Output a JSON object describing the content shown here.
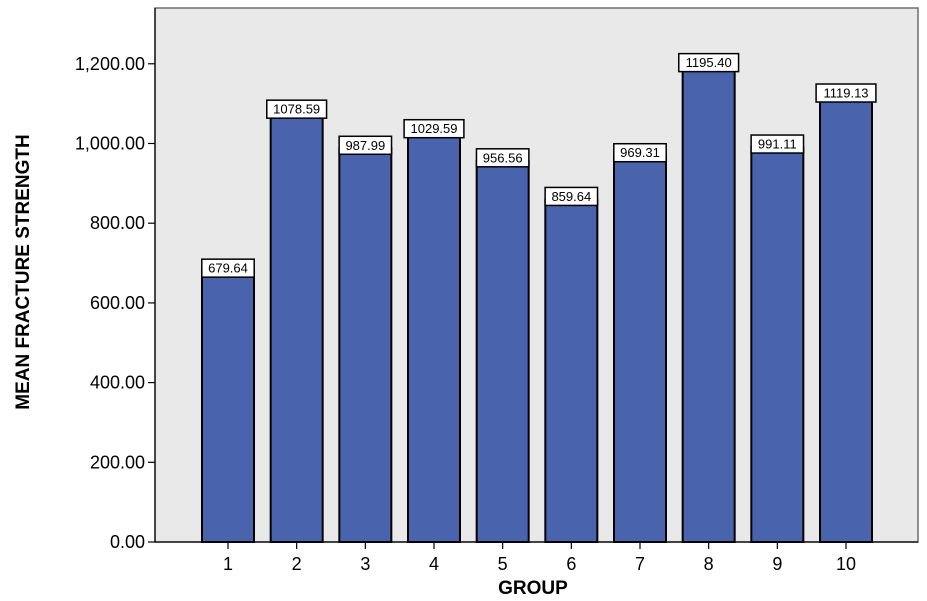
{
  "chart_data": {
    "type": "bar",
    "xlabel": "GROUP",
    "ylabel": "MEAN FRACTURE STRENGTH",
    "categories": [
      "1",
      "2",
      "3",
      "4",
      "5",
      "6",
      "7",
      "8",
      "9",
      "10"
    ],
    "values": [
      679.64,
      1078.59,
      987.99,
      1029.59,
      956.56,
      859.64,
      969.31,
      1195.4,
      991.11,
      1119.13
    ],
    "value_labels": [
      "679.64",
      "1078.59",
      "987.99",
      "1029.59",
      "956.56",
      "859.64",
      "969.31",
      "1195.40",
      "991.11",
      "1119.13"
    ],
    "yticks": [
      0,
      200,
      400,
      600,
      800,
      1000,
      1200
    ],
    "ytick_labels": [
      "0.00",
      "200.00",
      "400.00",
      "600.00",
      "800.00",
      "1,000.00",
      "1,200.00"
    ],
    "ylim": [
      0,
      1340
    ],
    "grid": false,
    "legend": "none",
    "colors": {
      "bar_fill": "#4a63ad",
      "bar_stroke": "#000000",
      "plot_background": "#e9e9e9",
      "label_box_fill": "#ffffff"
    }
  }
}
